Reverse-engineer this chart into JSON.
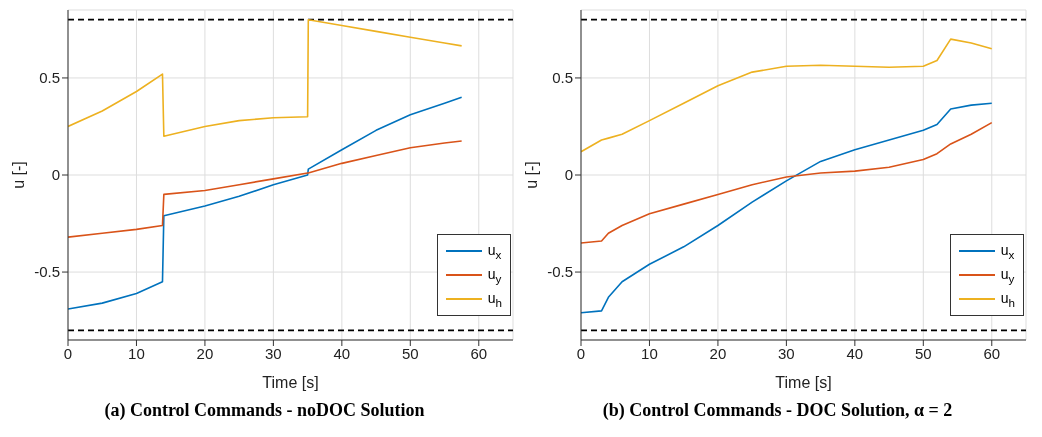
{
  "chart_data": [
    {
      "type": "line",
      "title": "(a) Control Commands - noDOC Solution",
      "xlabel": "Time [s]",
      "ylabel": "u [-]",
      "x": [
        0,
        5,
        10,
        13.8,
        14,
        20,
        25,
        30,
        35,
        35.1,
        40,
        45,
        50,
        55,
        57.5
      ],
      "series": [
        {
          "name": "u$_{x}$",
          "color": "#0072bd",
          "values": [
            -0.69,
            -0.66,
            -0.61,
            -0.55,
            -0.21,
            -0.16,
            -0.11,
            -0.05,
            0.0,
            0.03,
            0.13,
            0.23,
            0.31,
            0.37,
            0.4
          ]
        },
        {
          "name": "u$_{y}$",
          "color": "#d95319",
          "values": [
            -0.32,
            -0.3,
            -0.28,
            -0.26,
            -0.1,
            -0.08,
            -0.05,
            -0.02,
            0.01,
            0.01,
            0.06,
            0.1,
            0.14,
            0.165,
            0.175
          ]
        },
        {
          "name": "u$_{h}$",
          "color": "#edb120",
          "values": [
            0.25,
            0.33,
            0.43,
            0.52,
            0.2,
            0.25,
            0.28,
            0.295,
            0.3,
            0.8,
            0.77,
            0.74,
            0.71,
            0.68,
            0.665
          ]
        }
      ],
      "xlim": [
        0,
        65
      ],
      "xticks": [
        0,
        10,
        20,
        30,
        40,
        50,
        60
      ],
      "ylim": [
        -0.85,
        0.85
      ],
      "yticks": [
        -0.5,
        0,
        0.5
      ],
      "grid": true,
      "legend": "bottom right",
      "line_style": "solid",
      "marker": "none",
      "ref_lines": [
        {
          "axis": "y",
          "value": 0.8,
          "color": "#000000",
          "line_style": "dashed"
        },
        {
          "axis": "y",
          "value": -0.8,
          "color": "#000000",
          "line_style": "dashed"
        }
      ]
    },
    {
      "type": "line",
      "title": "(b) Control Commands - DOC Solution, α = 2",
      "xlabel": "Time [s]",
      "ylabel": "u [-]",
      "x": [
        0,
        3,
        4,
        6,
        10,
        15,
        20,
        25,
        30,
        35,
        40,
        45,
        50,
        52,
        54,
        57,
        60
      ],
      "series": [
        {
          "name": "u$_{x}$",
          "color": "#0072bd",
          "values": [
            -0.71,
            -0.7,
            -0.63,
            -0.55,
            -0.46,
            -0.37,
            -0.26,
            -0.14,
            -0.03,
            0.07,
            0.13,
            0.18,
            0.23,
            0.26,
            0.34,
            0.36,
            0.37
          ]
        },
        {
          "name": "u$_{y}$",
          "color": "#d95319",
          "values": [
            -0.35,
            -0.34,
            -0.3,
            -0.26,
            -0.2,
            -0.15,
            -0.1,
            -0.05,
            -0.01,
            0.01,
            0.02,
            0.04,
            0.08,
            0.11,
            0.16,
            0.21,
            0.27
          ]
        },
        {
          "name": "u$_{h}$",
          "color": "#edb120",
          "values": [
            0.12,
            0.18,
            0.19,
            0.21,
            0.28,
            0.37,
            0.46,
            0.53,
            0.56,
            0.565,
            0.56,
            0.555,
            0.56,
            0.59,
            0.7,
            0.68,
            0.65
          ]
        }
      ],
      "xlim": [
        0,
        65
      ],
      "xticks": [
        0,
        10,
        20,
        30,
        40,
        50,
        60
      ],
      "ylim": [
        -0.85,
        0.85
      ],
      "yticks": [
        -0.5,
        0,
        0.5
      ],
      "grid": true,
      "legend": "bottom right",
      "line_style": "solid",
      "marker": "none",
      "ref_lines": [
        {
          "axis": "y",
          "value": 0.8,
          "color": "#000000",
          "line_style": "dashed"
        },
        {
          "axis": "y",
          "value": -0.8,
          "color": "#000000",
          "line_style": "dashed"
        }
      ]
    }
  ]
}
